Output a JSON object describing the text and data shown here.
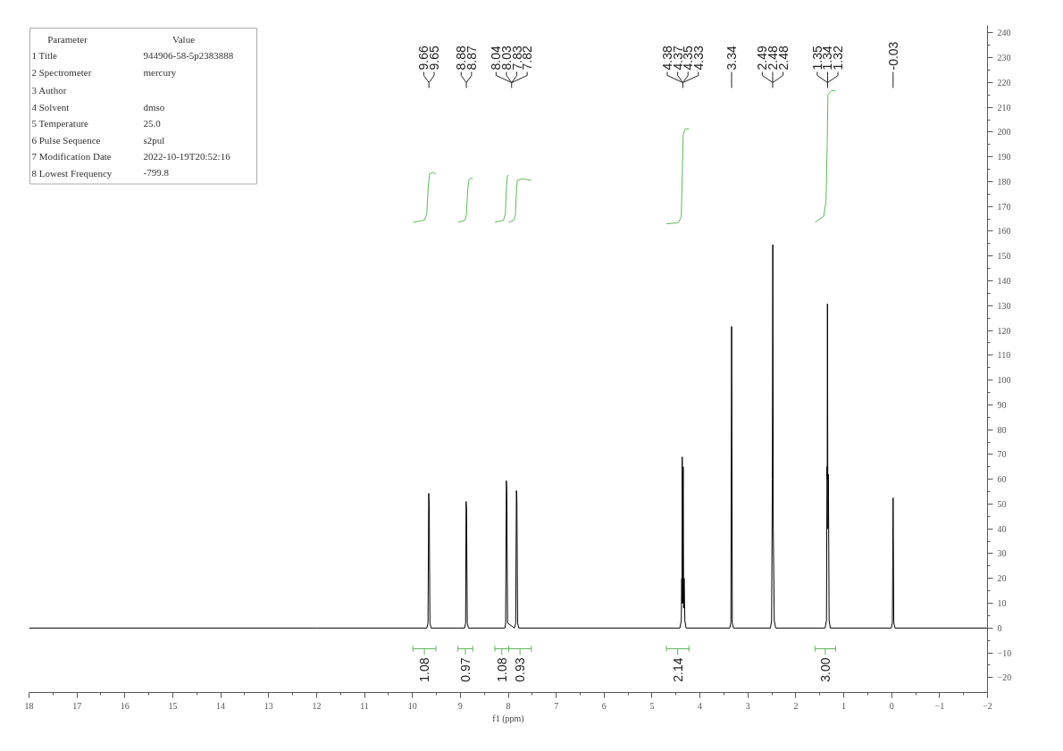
{
  "chart_data": {
    "type": "line",
    "xlabel": "f1 (ppm)",
    "xlim": [
      18,
      -2
    ],
    "xticks": [
      18,
      17,
      16,
      15,
      14,
      13,
      12,
      11,
      10,
      9,
      8,
      7,
      6,
      5,
      4,
      3,
      2,
      1,
      0,
      -1,
      -2
    ],
    "ylim": [
      -26,
      243
    ],
    "yticks": [
      -20,
      -10,
      0,
      10,
      20,
      30,
      40,
      50,
      60,
      70,
      80,
      90,
      100,
      110,
      120,
      130,
      140,
      150,
      160,
      170,
      180,
      190,
      200,
      210,
      220,
      230,
      240
    ],
    "series": [
      {
        "color": "#000000",
        "x": [
          18,
          12,
          9.7,
          9.675,
          9.66,
          9.65,
          9.635,
          9.61,
          8.91,
          8.89,
          8.88,
          8.87,
          8.855,
          8.83,
          8.07,
          8.055,
          8.04,
          8.03,
          8.015,
          7.87,
          7.845,
          7.83,
          7.82,
          7.805,
          7.78,
          4.42,
          4.39,
          4.38,
          4.375,
          4.37,
          4.36,
          4.35,
          4.34,
          4.33,
          4.315,
          4.29,
          3.38,
          3.355,
          3.34,
          3.325,
          3.3,
          2.53,
          2.505,
          2.49,
          2.48,
          2.47,
          2.45,
          2.42,
          1.39,
          1.36,
          1.35,
          1.345,
          1.34,
          1.33,
          1.32,
          1.305,
          1.28,
          0.01,
          -0.015,
          -0.03,
          -0.045,
          -0.07,
          -2
        ],
        "values": [
          0,
          0,
          0,
          2,
          54.3,
          50,
          2,
          0,
          0,
          2,
          51,
          48,
          2,
          0,
          0,
          2,
          59.4,
          55,
          2,
          0,
          2,
          55.4,
          52,
          2,
          0,
          0,
          3,
          20,
          10,
          69,
          10,
          65,
          8,
          20,
          3,
          0,
          0,
          2,
          121.6,
          2,
          0,
          0,
          3,
          60,
          154.6,
          40,
          3,
          0,
          0,
          3,
          65,
          60,
          130.7,
          40,
          62,
          3,
          0,
          0,
          2,
          52.5,
          2,
          0,
          0
        ]
      },
      {
        "color": "#5fb85a",
        "x": [
          9.99,
          9.75,
          9.7,
          9.67,
          9.64,
          9.57,
          9.51
        ],
        "values": [
          163.6,
          164.5,
          167,
          178,
          183.2,
          183.8,
          183
        ]
      },
      {
        "color": "#5fb85a",
        "x": [
          9.05,
          8.9,
          8.87,
          8.85,
          8.82,
          8.78,
          8.74
        ],
        "values": [
          163.6,
          164.5,
          167,
          176,
          180.8,
          181.4,
          181.2
        ]
      },
      {
        "color": "#5fb85a",
        "x": [
          8.28,
          8.1,
          8.06,
          8.04,
          8.02,
          7.99
        ],
        "values": [
          163.6,
          164.5,
          167,
          177,
          182.3,
          182.6
        ]
      },
      {
        "color": "#5fb85a",
        "x": [
          7.99,
          7.88,
          7.85,
          7.83,
          7.81,
          7.7,
          7.52
        ],
        "values": [
          163.6,
          164.5,
          167,
          176,
          180.5,
          181.2,
          180.5
        ]
      },
      {
        "color": "#5fb85a",
        "x": [
          4.7,
          4.45,
          4.39,
          4.37,
          4.35,
          4.31,
          4.23
        ],
        "values": [
          163,
          163.4,
          166,
          182,
          199,
          201.3,
          201.3
        ]
      },
      {
        "color": "#5fb85a",
        "x": [
          1.6,
          1.42,
          1.37,
          1.345,
          1.33,
          1.25,
          1.17
        ],
        "values": [
          163.6,
          166,
          172,
          195,
          215,
          216.8,
          216.5
        ]
      }
    ],
    "annotations": [
      "Parameter\tValue",
      "1 Title\t944906-58-5p2383888",
      "2 Spectrometer\tmercury",
      "3 Author",
      "4 Solvent\tdmso",
      "5 Temperature\t25.0",
      "6 Pulse Sequence\ts2pul",
      "7 Modification Date\t2022-10-19T20:52:16",
      "8 Lowest Frequency\t-799.8",
      "9.66",
      "9.65",
      "8.88",
      "8.87",
      "8.04",
      "8.03",
      "7.83",
      "7.82",
      "4.38",
      "4.37",
      "4.35",
      "4.33",
      "3.34",
      "2.49",
      "2.48",
      "2.48",
      "1.35",
      "1.34",
      "1.32",
      "-0.03",
      "1.08",
      "0.97",
      "1.08",
      "0.93",
      "2.14",
      "3.00"
    ]
  }
}
